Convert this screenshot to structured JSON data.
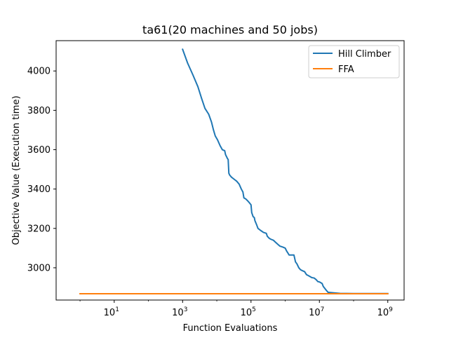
{
  "chart_data": {
    "type": "line",
    "title": "ta61(20 machines and 50 jobs)",
    "xlabel": "Function Evaluations",
    "ylabel": "Objective Value (Execution time)",
    "x_scale": "log",
    "xlim": [
      0.2,
      3000000000
    ],
    "ylim": [
      2836,
      4154
    ],
    "grid": false,
    "legend_position": "top-right",
    "x_ticks": [
      {
        "base": "10",
        "exp": "1",
        "value": 10
      },
      {
        "base": "10",
        "exp": "3",
        "value": 1000
      },
      {
        "base": "10",
        "exp": "5",
        "value": 100000
      },
      {
        "base": "10",
        "exp": "7",
        "value": 10000000
      },
      {
        "base": "10",
        "exp": "9",
        "value": 1000000000
      }
    ],
    "y_ticks": [
      "3000",
      "3200",
      "3400",
      "3600",
      "3800",
      "4000"
    ],
    "series": [
      {
        "name": "Hill Climber",
        "color": "#1f77b4",
        "points": [
          [
            1000,
            4110
          ],
          [
            1400,
            4040
          ],
          [
            2000,
            3980
          ],
          [
            2800,
            3920
          ],
          [
            3600,
            3860
          ],
          [
            4500,
            3810
          ],
          [
            5800,
            3780
          ],
          [
            7000,
            3740
          ],
          [
            8000,
            3700
          ],
          [
            9000,
            3670
          ],
          [
            10500,
            3650
          ],
          [
            12500,
            3620
          ],
          [
            14500,
            3600
          ],
          [
            17000,
            3595
          ],
          [
            18000,
            3575
          ],
          [
            20500,
            3555
          ],
          [
            21500,
            3550
          ],
          [
            22500,
            3480
          ],
          [
            24000,
            3470
          ],
          [
            27000,
            3460
          ],
          [
            32000,
            3450
          ],
          [
            38000,
            3440
          ],
          [
            45000,
            3425
          ],
          [
            52000,
            3400
          ],
          [
            58000,
            3385
          ],
          [
            62000,
            3355
          ],
          [
            70000,
            3350
          ],
          [
            80000,
            3340
          ],
          [
            90000,
            3330
          ],
          [
            100000,
            3320
          ],
          [
            105000,
            3280
          ],
          [
            115000,
            3260
          ],
          [
            125000,
            3255
          ],
          [
            130000,
            3240
          ],
          [
            145000,
            3220
          ],
          [
            160000,
            3200
          ],
          [
            190000,
            3190
          ],
          [
            230000,
            3180
          ],
          [
            280000,
            3175
          ],
          [
            300000,
            3160
          ],
          [
            340000,
            3150
          ],
          [
            380000,
            3145
          ],
          [
            450000,
            3140
          ],
          [
            520000,
            3130
          ],
          [
            600000,
            3120
          ],
          [
            700000,
            3110
          ],
          [
            850000,
            3105
          ],
          [
            1000000,
            3100
          ],
          [
            1100000,
            3085
          ],
          [
            1200000,
            3075
          ],
          [
            1300000,
            3065
          ],
          [
            1800000,
            3065
          ],
          [
            2000000,
            3030
          ],
          [
            2200000,
            3020
          ],
          [
            2500000,
            3000
          ],
          [
            2800000,
            2990
          ],
          [
            3200000,
            2985
          ],
          [
            3700000,
            2980
          ],
          [
            4200000,
            2965
          ],
          [
            5000000,
            2958
          ],
          [
            6000000,
            2950
          ],
          [
            7000000,
            2948
          ],
          [
            8000000,
            2940
          ],
          [
            9000000,
            2930
          ],
          [
            10000000,
            2928
          ],
          [
            12000000,
            2920
          ],
          [
            13000000,
            2905
          ],
          [
            14000000,
            2898
          ],
          [
            16000000,
            2885
          ],
          [
            18000000,
            2875
          ],
          [
            25000000,
            2873
          ],
          [
            40000000,
            2870
          ],
          [
            100000000,
            2869
          ],
          [
            1000000000,
            2869
          ]
        ]
      },
      {
        "name": "FFA",
        "color": "#ff7f0e",
        "points": [
          [
            1,
            2868
          ],
          [
            1000000000,
            2868
          ]
        ]
      }
    ]
  }
}
